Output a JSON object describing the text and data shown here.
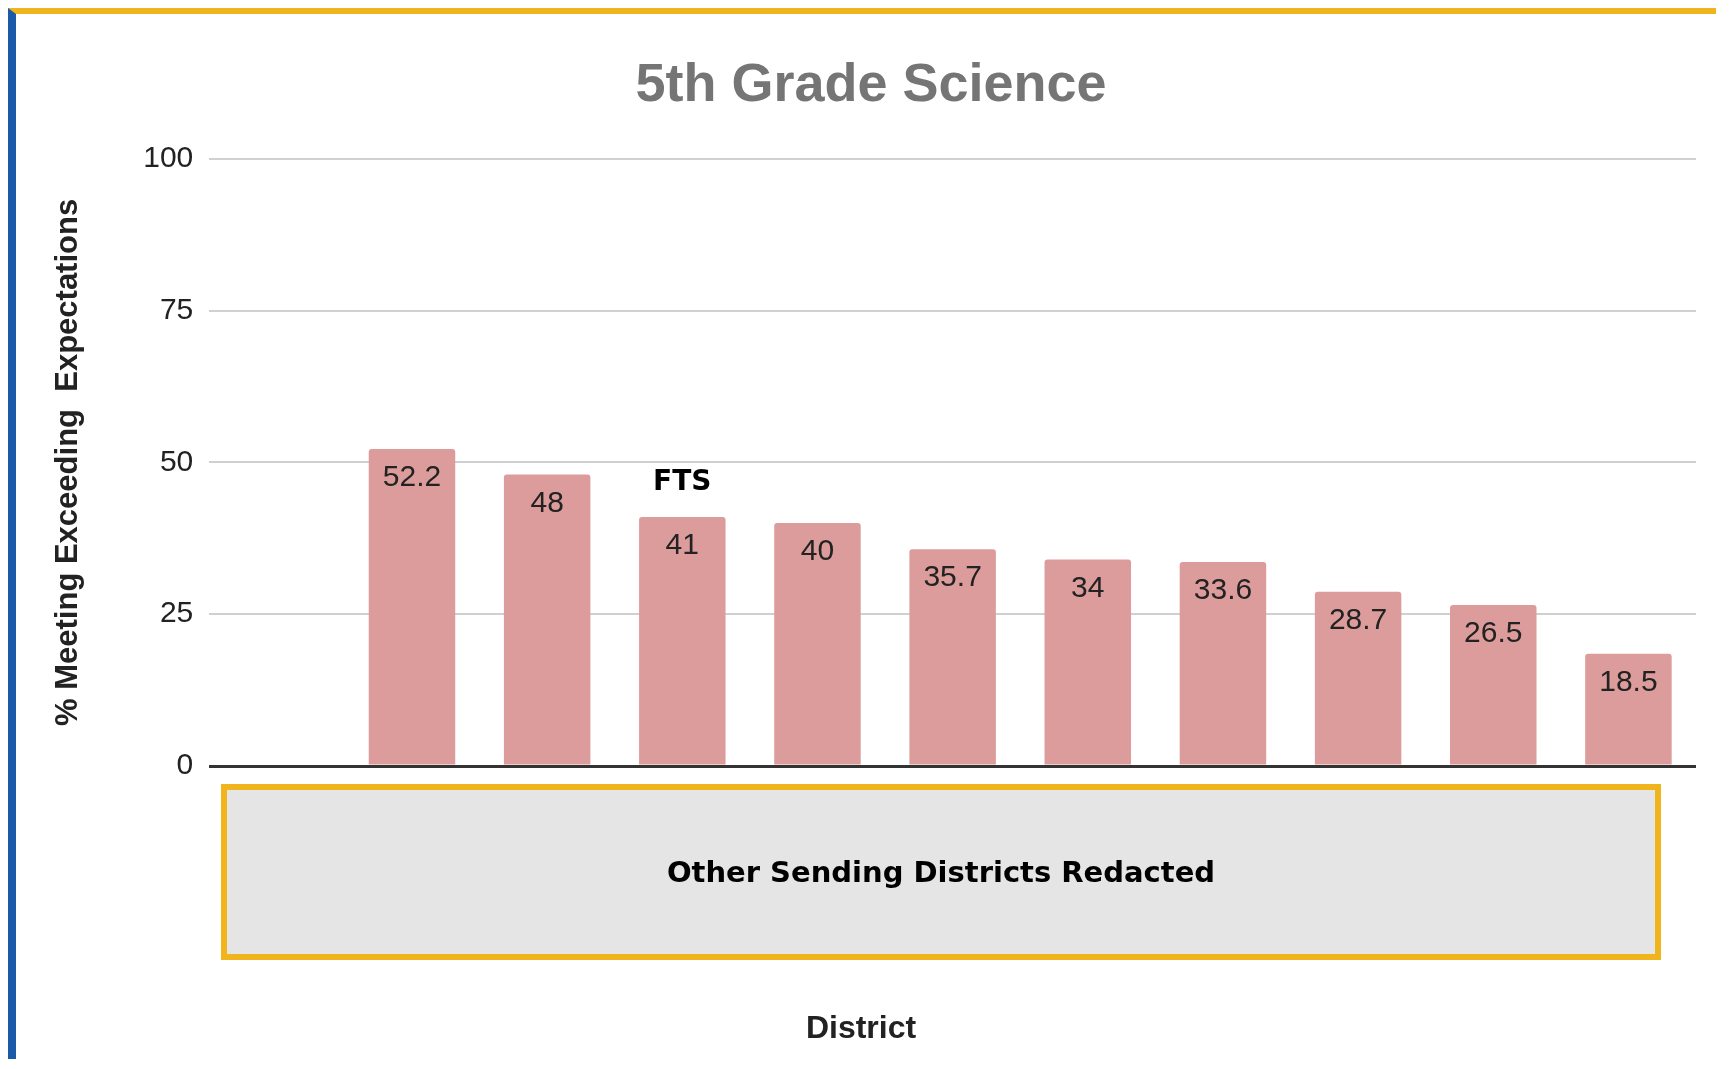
{
  "chart_data": {
    "type": "bar",
    "title": "5th Grade Science",
    "ylabel": "% Meeting Exceeding  Expectations",
    "categories": [
      null,
      null,
      null,
      "FTS",
      null,
      null,
      null,
      null,
      null,
      null,
      null
    ],
    "values": [
      null,
      52.2,
      48,
      41,
      40,
      35.7,
      34,
      33.6,
      28.7,
      26.5,
      18.5
    ],
    "color": "#dd9c9c",
    "data_labels": true,
    "ylim": [
      0,
      100
    ],
    "yticks": [
      0,
      25,
      50,
      75,
      100
    ],
    "grid": "y",
    "legend": false,
    "annotations": [
      "Other Sending Districts Redacted",
      "District"
    ]
  }
}
